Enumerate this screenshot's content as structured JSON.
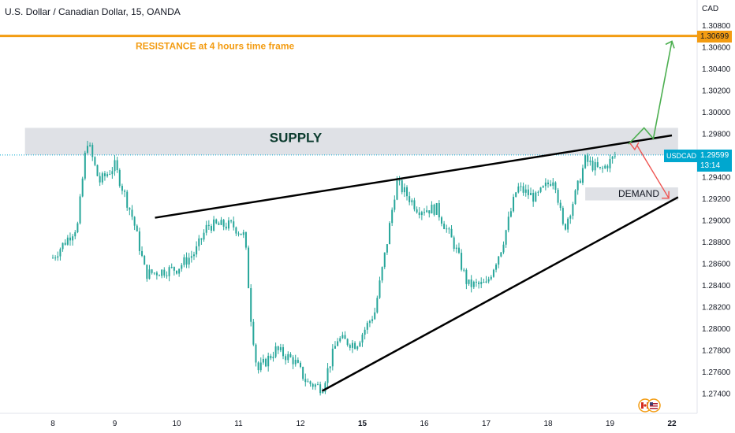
{
  "header": {
    "title": "U.S. Dollar / Canadian Dollar, 15, OANDA",
    "currency": "CAD"
  },
  "colors": {
    "candle": "#26a69a",
    "resistance": "#f39c12",
    "supply_zone": "#d1d4dc",
    "arrow_up": "#4caf50",
    "arrow_down": "#ef5350",
    "price_tag": "#00a7cf",
    "trendline": "#000000"
  },
  "chart_data": {
    "type": "candlestick",
    "x_ticks": [
      "8",
      "9",
      "10",
      "11",
      "12",
      "15",
      "16",
      "17",
      "18",
      "19",
      "22"
    ],
    "y_ticks": [
      "1.27400",
      "1.27600",
      "1.27800",
      "1.28000",
      "1.28200",
      "1.28400",
      "1.28600",
      "1.28800",
      "1.29000",
      "1.29200",
      "1.29400",
      "1.29800",
      "1.30000",
      "1.30200",
      "1.30400",
      "1.30600",
      "1.30800"
    ],
    "ylim": [
      1.2725,
      1.309
    ],
    "price_path": [
      [
        0,
        1.2865
      ],
      [
        0.4,
        1.2895
      ],
      [
        0.55,
        1.2975
      ],
      [
        0.75,
        1.2935
      ],
      [
        1.0,
        1.295
      ],
      [
        1.3,
        1.29
      ],
      [
        1.5,
        1.285
      ],
      [
        2.0,
        1.2855
      ],
      [
        2.3,
        1.287
      ],
      [
        2.5,
        1.2895
      ],
      [
        2.9,
        1.2895
      ],
      [
        3.1,
        1.2885
      ],
      [
        3.2,
        1.281
      ],
      [
        3.3,
        1.276
      ],
      [
        3.6,
        1.278
      ],
      [
        3.9,
        1.277
      ],
      [
        4.1,
        1.275
      ],
      [
        4.35,
        1.2745
      ],
      [
        4.6,
        1.279
      ],
      [
        4.9,
        1.2785
      ],
      [
        5.2,
        1.2815
      ],
      [
        5.4,
        1.288
      ],
      [
        5.55,
        1.2935
      ],
      [
        5.9,
        1.291
      ],
      [
        6.2,
        1.291
      ],
      [
        6.5,
        1.2875
      ],
      [
        6.7,
        1.284
      ],
      [
        7.0,
        1.284
      ],
      [
        7.25,
        1.2875
      ],
      [
        7.5,
        1.293
      ],
      [
        7.8,
        1.292
      ],
      [
        8.1,
        1.294
      ],
      [
        8.25,
        1.289
      ],
      [
        8.45,
        1.2925
      ],
      [
        8.6,
        1.2955
      ],
      [
        8.85,
        1.2945
      ],
      [
        9.1,
        1.296
      ]
    ],
    "current_price": "1.29599",
    "current_symbol": "USDCAD",
    "countdown": "13:14",
    "resistance": {
      "price": 1.30699,
      "label": "1.30699",
      "text": "RESISTANCE at 4 hours time frame"
    },
    "supply_zone": {
      "top": 1.2985,
      "bottom": 1.296,
      "x_from": -0.45,
      "x_to": 10.1,
      "label": "SUPPLY"
    },
    "demand_zone": {
      "top": 1.293,
      "bottom": 1.2918,
      "x_from": 8.6,
      "x_to": 10.1,
      "label": "DEMAND"
    },
    "upper_trendline": {
      "from": [
        1.65,
        1.2902
      ],
      "to": [
        10.0,
        1.2978
      ]
    },
    "lower_trendline": {
      "from": [
        4.35,
        1.2742
      ],
      "to": [
        10.1,
        1.2921
      ]
    },
    "arrow_up": [
      [
        9.3,
        1.297
      ],
      [
        9.55,
        1.2985
      ],
      [
        9.7,
        1.2975
      ],
      [
        10.0,
        1.3065
      ]
    ],
    "arrow_down": [
      [
        9.4,
        1.2965
      ],
      [
        9.95,
        1.292
      ]
    ]
  }
}
